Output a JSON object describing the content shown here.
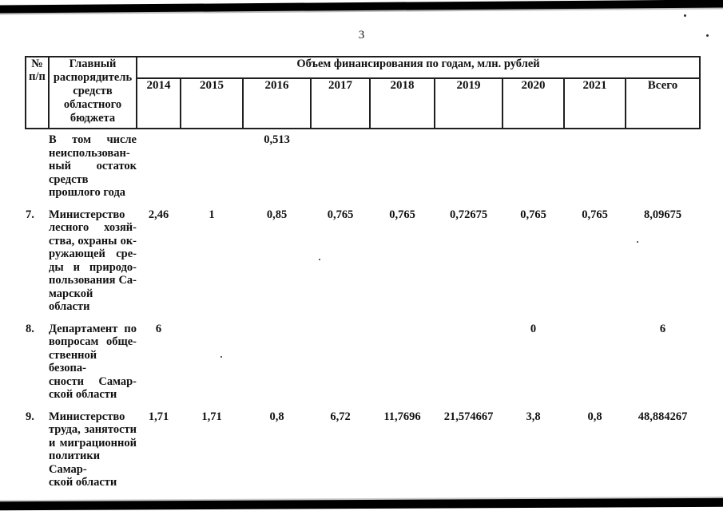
{
  "page_number": "3",
  "table": {
    "header": {
      "num_col": "№ п/п",
      "manager_col": "Главный распорядитель средств областного бюджета",
      "span": "Объем финансирования по годам, млн. рублей",
      "years": [
        "2014",
        "2015",
        "2016",
        "2017",
        "2018",
        "2019",
        "2020",
        "2021"
      ],
      "total": "Всего"
    },
    "rows": [
      {
        "num": "",
        "label_lines": [
          "В том числе",
          "неиспользован-",
          "ный остаток",
          "средств",
          "прошлого года"
        ],
        "values": [
          "",
          "",
          "0,513",
          "",
          "",
          "",
          "",
          "",
          ""
        ]
      },
      {
        "num": "7.",
        "label_lines": [
          "Министерство",
          "лесного хозяй-",
          "ства, охраны ок-",
          "ружающей сре-",
          "ды и природо-",
          "пользования Са-",
          "марской области"
        ],
        "values": [
          "2,46",
          "1",
          "0,85",
          "0,765",
          "0,765",
          "0,72675",
          "0,765",
          "0,765",
          "8,09675"
        ]
      },
      {
        "num": "8.",
        "label_lines": [
          "Департамент по",
          "вопросам обще-",
          "ственной безопа-",
          "сности Самар-",
          "ской области"
        ],
        "values": [
          "6",
          "",
          "",
          "",
          "",
          "",
          "0",
          "",
          "6"
        ]
      },
      {
        "num": "9.",
        "label_lines": [
          "Министерство",
          "труда, занятости",
          "и миграционной",
          "политики Самар-",
          "ской области"
        ],
        "values": [
          "1,71",
          "1,71",
          "0,8",
          "6,72",
          "11,7696",
          "21,574667",
          "3,8",
          "0,8",
          "48,884267"
        ]
      }
    ]
  }
}
